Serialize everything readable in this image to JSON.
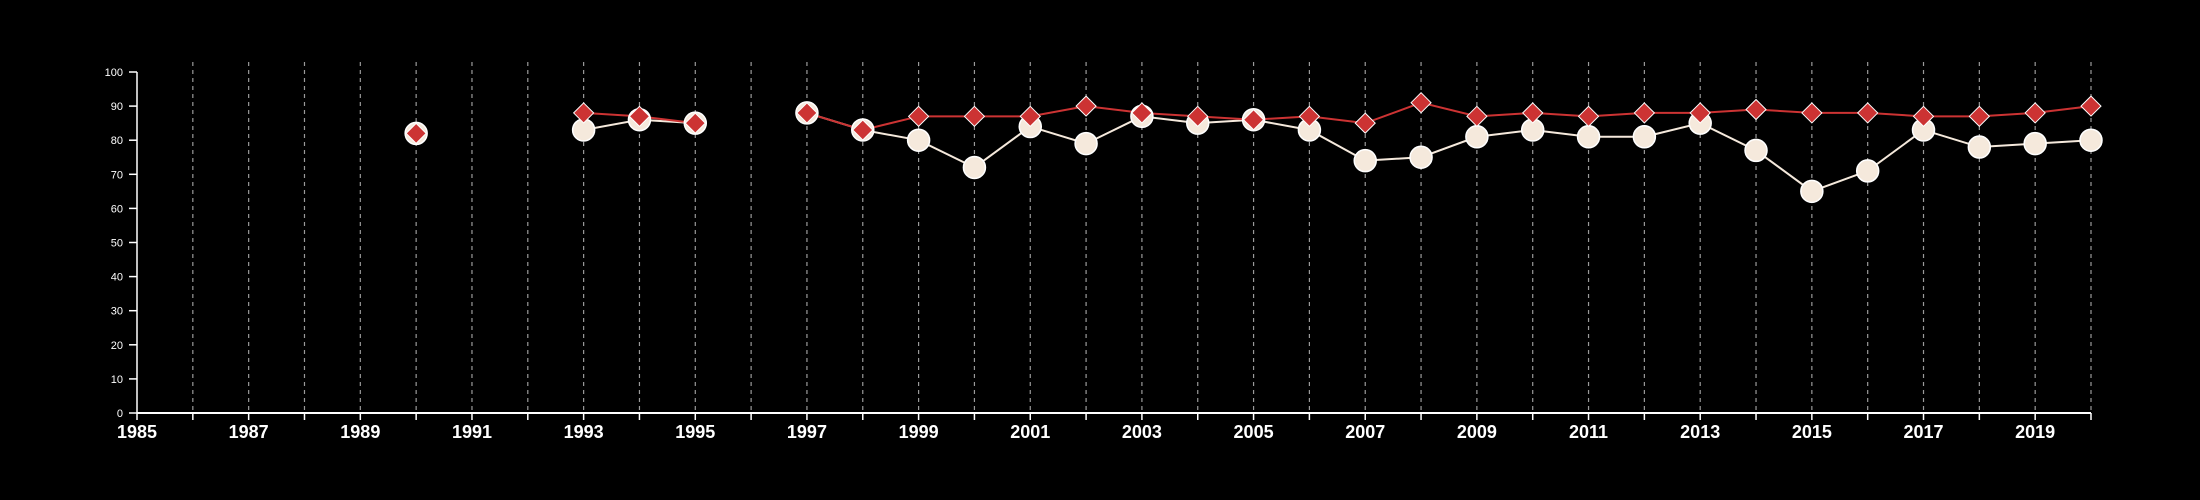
{
  "chart_data": {
    "type": "line",
    "title": "",
    "xlabel": "",
    "ylabel": "",
    "xlim": [
      1985,
      2020
    ],
    "ylim": [
      0,
      100
    ],
    "grid": {
      "vertical_dashed": true,
      "horizontal": false
    },
    "xticks": [
      1985,
      1987,
      1989,
      1991,
      1993,
      1995,
      1997,
      1999,
      2001,
      2003,
      2005,
      2007,
      2009,
      2011,
      2013,
      2015,
      2017,
      2019
    ],
    "yticks": [
      0,
      10,
      20,
      30,
      40,
      50,
      60,
      70,
      80,
      90,
      100
    ],
    "x": [
      1985,
      1986,
      1987,
      1988,
      1989,
      1990,
      1991,
      1992,
      1993,
      1994,
      1995,
      1996,
      1997,
      1998,
      1999,
      2000,
      2001,
      2002,
      2003,
      2004,
      2005,
      2006,
      2007,
      2008,
      2009,
      2010,
      2011,
      2012,
      2013,
      2014,
      2015,
      2016,
      2017,
      2018,
      2019,
      2020
    ],
    "series": [
      {
        "marker": "circle",
        "color": "#f5e9dc",
        "values": [
          null,
          null,
          null,
          null,
          null,
          82,
          null,
          null,
          83,
          86,
          85,
          null,
          88,
          83,
          80,
          72,
          84,
          79,
          87,
          85,
          86,
          83,
          74,
          75,
          81,
          83,
          81,
          81,
          85,
          77,
          65,
          71,
          83,
          78,
          79,
          80
        ]
      },
      {
        "marker": "diamond",
        "color": "#cc3333",
        "values": [
          null,
          null,
          null,
          null,
          null,
          82,
          null,
          null,
          88,
          87,
          85,
          null,
          88,
          83,
          87,
          87,
          87,
          90,
          88,
          87,
          86,
          87,
          85,
          91,
          87,
          88,
          87,
          88,
          88,
          89,
          88,
          88,
          87,
          87,
          88,
          90
        ]
      }
    ]
  }
}
